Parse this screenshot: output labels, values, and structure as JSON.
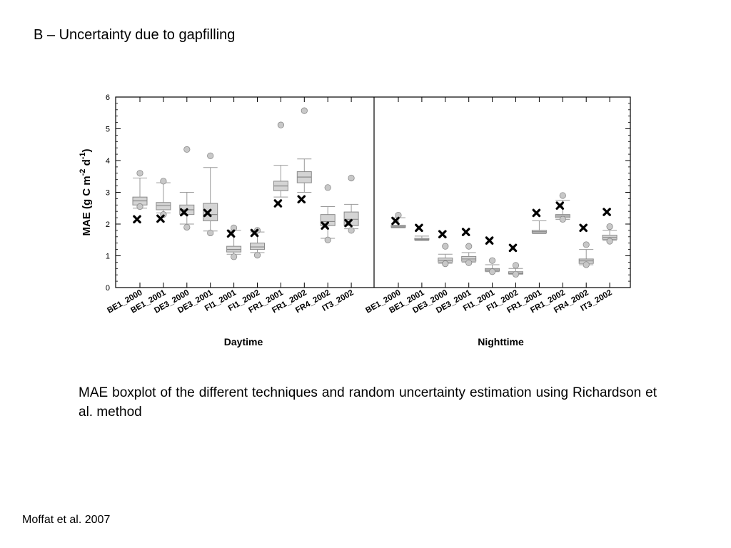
{
  "slide": {
    "title": "B – Uncertainty due to gapfilling",
    "caption": "MAE boxplot of the different techniques and random uncertainty estimation using Richardson et al. method",
    "source": "Moffat et al. 2007"
  },
  "chart_data": {
    "type": "boxplot",
    "ylabel": "MAE (g C m-2 d-1)",
    "ylim": [
      0,
      6
    ],
    "yticks": [
      0,
      1,
      2,
      3,
      4,
      5,
      6
    ],
    "colors": {
      "box_fill": "#d4d4d4",
      "box_stroke": "#8a8a8a",
      "whisker": "#9a9a9a",
      "outlier_fill": "#c8c8c8",
      "marker": "#000000",
      "axis": "#000000"
    },
    "panels": [
      {
        "label": "Daytime",
        "categories": [
          "BE1_2000",
          "BE1_2001",
          "DE3_2000",
          "DE3_2001",
          "FI1_2001",
          "FI1_2002",
          "FR1_2001",
          "FR1_2002",
          "FR4_2002",
          "IT3_2002"
        ],
        "boxes": [
          {
            "whisker_low": 2.5,
            "q1": 2.6,
            "median": 2.73,
            "q3": 2.85,
            "whisker_high": 3.45,
            "outliers": [
              3.6,
              2.55
            ]
          },
          {
            "whisker_low": 2.35,
            "q1": 2.45,
            "median": 2.58,
            "q3": 2.68,
            "whisker_high": 3.3,
            "outliers": [
              3.35,
              2.3
            ]
          },
          {
            "whisker_low": 2.0,
            "q1": 2.3,
            "median": 2.45,
            "q3": 2.6,
            "whisker_high": 3.0,
            "outliers": [
              4.35,
              1.9
            ]
          },
          {
            "whisker_low": 1.78,
            "q1": 2.1,
            "median": 2.3,
            "q3": 2.65,
            "whisker_high": 3.78,
            "outliers": [
              4.15,
              1.72
            ]
          },
          {
            "whisker_low": 1.05,
            "q1": 1.12,
            "median": 1.2,
            "q3": 1.3,
            "whisker_high": 1.8,
            "outliers": [
              1.88,
              0.97
            ]
          },
          {
            "whisker_low": 1.1,
            "q1": 1.2,
            "median": 1.28,
            "q3": 1.4,
            "whisker_high": 1.75,
            "outliers": [
              1.8,
              1.02
            ]
          },
          {
            "whisker_low": 2.85,
            "q1": 3.05,
            "median": 3.2,
            "q3": 3.35,
            "whisker_high": 3.85,
            "outliers": [
              5.12
            ]
          },
          {
            "whisker_low": 3.0,
            "q1": 3.3,
            "median": 3.48,
            "q3": 3.65,
            "whisker_high": 4.05,
            "outliers": [
              5.57
            ]
          },
          {
            "whisker_low": 1.55,
            "q1": 1.95,
            "median": 2.08,
            "q3": 2.3,
            "whisker_high": 2.55,
            "outliers": [
              3.15,
              1.5
            ]
          },
          {
            "whisker_low": 1.85,
            "q1": 1.95,
            "median": 2.15,
            "q3": 2.38,
            "whisker_high": 2.62,
            "outliers": [
              3.45,
              1.8
            ]
          }
        ],
        "richardson_estimate": [
          2.15,
          2.17,
          2.37,
          2.35,
          1.7,
          1.72,
          2.65,
          2.78,
          1.95,
          2.03
        ]
      },
      {
        "label": "Nighttime",
        "categories": [
          "BE1_2000",
          "BE1_2001",
          "DE3_2000",
          "DE3_2001",
          "FI1_2001",
          "FI1_2002",
          "FR1_2001",
          "FR1_2002",
          "FR4_2002",
          "IT3_2002"
        ],
        "boxes": [
          {
            "whisker_low": 1.88,
            "q1": 1.9,
            "median": 1.93,
            "q3": 1.96,
            "whisker_high": 2.2,
            "outliers": [
              2.28
            ]
          },
          {
            "whisker_low": 1.48,
            "q1": 1.5,
            "median": 1.52,
            "q3": 1.55,
            "whisker_high": 1.62,
            "outliers": []
          },
          {
            "whisker_low": 0.76,
            "q1": 0.8,
            "median": 0.86,
            "q3": 0.93,
            "whisker_high": 1.05,
            "outliers": [
              1.3,
              0.75
            ]
          },
          {
            "whisker_low": 0.8,
            "q1": 0.83,
            "median": 0.9,
            "q3": 0.98,
            "whisker_high": 1.1,
            "outliers": [
              1.3,
              0.78
            ]
          },
          {
            "whisker_low": 0.5,
            "q1": 0.52,
            "median": 0.56,
            "q3": 0.6,
            "whisker_high": 0.72,
            "outliers": [
              0.85,
              0.5
            ]
          },
          {
            "whisker_low": 0.42,
            "q1": 0.43,
            "median": 0.45,
            "q3": 0.5,
            "whisker_high": 0.6,
            "outliers": [
              0.7,
              0.42
            ]
          },
          {
            "whisker_low": 1.7,
            "q1": 1.72,
            "median": 1.76,
            "q3": 1.8,
            "whisker_high": 2.1,
            "outliers": []
          },
          {
            "whisker_low": 2.15,
            "q1": 2.2,
            "median": 2.25,
            "q3": 2.3,
            "whisker_high": 2.75,
            "outliers": [
              2.9,
              2.15
            ]
          },
          {
            "whisker_low": 0.72,
            "q1": 0.76,
            "median": 0.84,
            "q3": 0.9,
            "whisker_high": 1.2,
            "outliers": [
              1.35,
              0.72
            ]
          },
          {
            "whisker_low": 1.48,
            "q1": 1.52,
            "median": 1.58,
            "q3": 1.65,
            "whisker_high": 1.8,
            "outliers": [
              1.92,
              1.46
            ]
          }
        ],
        "richardson_estimate": [
          2.1,
          1.88,
          1.68,
          1.75,
          1.48,
          1.25,
          2.35,
          2.58,
          1.88,
          2.38
        ]
      }
    ]
  }
}
